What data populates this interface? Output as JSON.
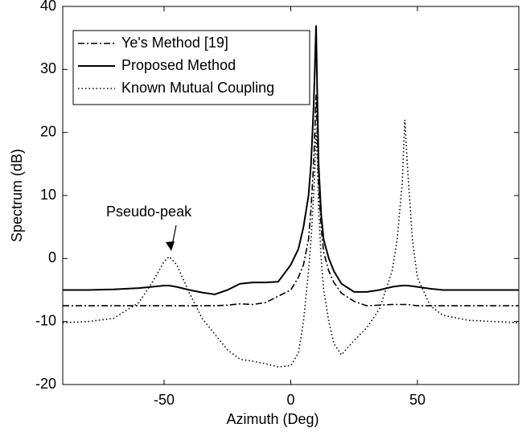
{
  "chart_data": {
    "type": "line",
    "x_label": "Azimuth (Deg)",
    "y_label": "Spectrum (dB)",
    "x": [
      -90,
      -80,
      -70,
      -60,
      -55,
      -50,
      -48,
      -45,
      -40,
      -35,
      -30,
      -25,
      -20,
      -15,
      -10,
      -5,
      0,
      3,
      5,
      7,
      8,
      9,
      9.5,
      10,
      10.5,
      11,
      12,
      13,
      15,
      17,
      20,
      25,
      30,
      35,
      40,
      42,
      44,
      45,
      46,
      48,
      50,
      55,
      60,
      70,
      80,
      90
    ],
    "series": [
      {
        "name": "Ye's Method [19]",
        "color": "#000000",
        "style": "dashdot",
        "values": [
          -7.5,
          -7.5,
          -7.5,
          -7.5,
          -7.5,
          -7.5,
          -7.5,
          -7.5,
          -7.5,
          -7.5,
          -7.5,
          -7.4,
          -7.2,
          -7.3,
          -7,
          -6,
          -5,
          -3,
          -1,
          3,
          8,
          15,
          20,
          26,
          20,
          12,
          5,
          1,
          -2,
          -3.8,
          -5.5,
          -6.8,
          -7.5,
          -7.4,
          -7.3,
          -7.3,
          -7.3,
          -7.3,
          -7.3,
          -7.4,
          -7.5,
          -7.5,
          -7.5,
          -7.5,
          -7.5,
          -7.5
        ]
      },
      {
        "name": "Proposed Method",
        "color": "#000000",
        "style": "solid",
        "values": [
          -5,
          -5,
          -4.9,
          -4.7,
          -4.5,
          -4.3,
          -4.3,
          -4.5,
          -5,
          -5.4,
          -5.7,
          -5,
          -4,
          -3.8,
          -3.8,
          -3.7,
          -1,
          1.5,
          5,
          10,
          15,
          24,
          30,
          37,
          25,
          15,
          7,
          3,
          0,
          -2,
          -4,
          -5.3,
          -5.3,
          -5,
          -4.5,
          -4.4,
          -4.3,
          -4.3,
          -4.3,
          -4.4,
          -4.5,
          -4.8,
          -5,
          -5,
          -5,
          -5
        ]
      },
      {
        "name": "Known Mutual Coupling",
        "color": "#000000",
        "style": "dotted",
        "values": [
          -10.2,
          -10,
          -9.5,
          -7,
          -4,
          -0.5,
          0.3,
          -1,
          -5.5,
          -9.5,
          -12,
          -14.5,
          -16,
          -16.3,
          -16.7,
          -17.2,
          -17,
          -15,
          -10,
          -2,
          3,
          10,
          14,
          20,
          16,
          8,
          0,
          -5,
          -10,
          -13.5,
          -15.3,
          -13,
          -11,
          -8,
          -2,
          3,
          12,
          22,
          15,
          3,
          -3,
          -7.5,
          -9,
          -9.8,
          -10,
          -10.2
        ]
      }
    ],
    "annotation": "Pseudo-peak",
    "xlim": [
      -90,
      90
    ],
    "xticks": [
      -50,
      0,
      50
    ],
    "ylim": [
      -20,
      40
    ],
    "yticks": [
      -20,
      -10,
      0,
      10,
      20,
      30,
      40
    ],
    "legend": "upper left"
  }
}
